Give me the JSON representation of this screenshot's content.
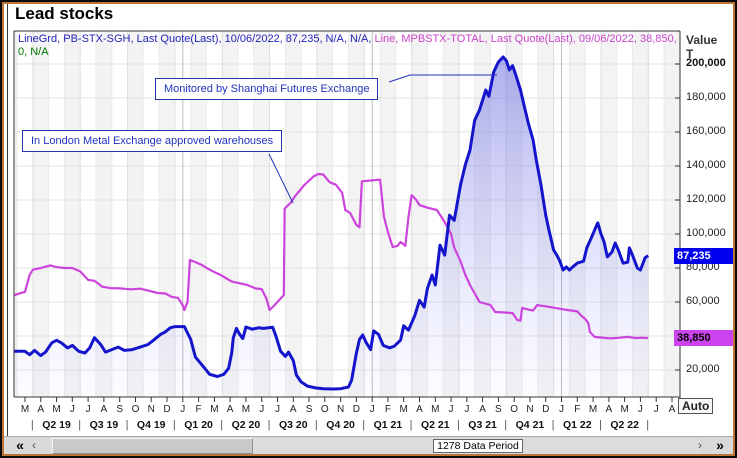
{
  "window": {
    "title": "Lead stocks"
  },
  "legend": {
    "line1_blue": "LineGrd, PB-STX-SGH, Last Quote(Last),  10/06/2022, 87,235, N/A, N/A,",
    "line1_magenta": " Line, MPBSTX-TOTAL, Last Quote(Last), 09/06/2022, 38,850,",
    "line2_green": "0, N/A"
  },
  "annotations": {
    "shfe": "Monitored by Shanghai Futures Exchange",
    "lme": "In London Metal Exchange approved warehouses"
  },
  "y_axis": {
    "title_line1": "Value",
    "title_line2": "T",
    "ticks": [
      {
        "value": 200000,
        "label": "200,000",
        "bold": true
      },
      {
        "value": 180000,
        "label": "180,000"
      },
      {
        "value": 160000,
        "label": "160,000"
      },
      {
        "value": 140000,
        "label": "140,000"
      },
      {
        "value": 120000,
        "label": "120,000"
      },
      {
        "value": 100000,
        "label": "100,000"
      },
      {
        "value": 80000,
        "label": "80,000"
      },
      {
        "value": 60000,
        "label": "60,000"
      },
      {
        "value": 40000,
        "label": ""
      },
      {
        "value": 20000,
        "label": "20,000"
      }
    ],
    "auto_button": "Auto"
  },
  "x_axis": {
    "months": [
      "M",
      "A",
      "M",
      "J",
      "J",
      "A",
      "S",
      "O",
      "N",
      "D",
      "J",
      "F",
      "M",
      "A",
      "M",
      "J",
      "J",
      "A",
      "S",
      "O",
      "N",
      "D",
      "J",
      "F",
      "M",
      "A",
      "M",
      "J",
      "J",
      "A",
      "S",
      "O",
      "N",
      "D",
      "J",
      "F",
      "M",
      "A",
      "M",
      "J",
      "J",
      "A"
    ],
    "quarters": [
      "Q2 19",
      "Q3 19",
      "Q4 19",
      "Q1 20",
      "Q2 20",
      "Q3 20",
      "Q4 20",
      "Q1 21",
      "Q2 21",
      "Q3 21",
      "Q4 21",
      "Q1 22",
      "Q2 22"
    ],
    "separator": "|"
  },
  "badges": {
    "blue": {
      "label": "87,235",
      "value": 87235
    },
    "magenta": {
      "label": "38,850",
      "value": 38850
    }
  },
  "scrollbar": {
    "far_left": "«",
    "left": "‹",
    "label": "1278 Data Period",
    "right": "›",
    "far_right": "»"
  },
  "colors": {
    "blue_line": "#1414cc",
    "magenta_line": "#cc44dd",
    "blue_badge_bg": "#0000ee",
    "magenta_badge_bg": "#cc44ee",
    "annotation": "#2233bb",
    "frame_accent": "#bd7434"
  },
  "chart_data": {
    "type": "line",
    "title": "Lead stocks",
    "ylabel": "Value T (tonnes)",
    "x_unit": "months from Mar 2019 (0 = Mar 2019, fractional = intra-month)",
    "x_tick_months": 42,
    "ylim": [
      4000,
      204000
    ],
    "grid": true,
    "legend_position": "top-left-text",
    "series": [
      {
        "name": "PB-STX-SGH — lead stocks monitored by Shanghai Futures Exchange",
        "style": "line-gradient-fill",
        "color": "#1414cc",
        "last_quote_date": "10/06/2022",
        "last_quote_value": 87235,
        "points": [
          [
            -0.7,
            31000
          ],
          [
            0,
            31000
          ],
          [
            0.3,
            29000
          ],
          [
            0.6,
            31500
          ],
          [
            1.0,
            28500
          ],
          [
            1.3,
            30500
          ],
          [
            1.7,
            36000
          ],
          [
            2.0,
            37500
          ],
          [
            2.3,
            36000
          ],
          [
            2.7,
            33000
          ],
          [
            3.0,
            34500
          ],
          [
            3.4,
            31000
          ],
          [
            3.8,
            30000
          ],
          [
            4.1,
            33000
          ],
          [
            4.4,
            39000
          ],
          [
            4.8,
            35000
          ],
          [
            5.1,
            30500
          ],
          [
            5.5,
            32000
          ],
          [
            5.9,
            33500
          ],
          [
            6.3,
            31500
          ],
          [
            6.8,
            32000
          ],
          [
            7.3,
            33500
          ],
          [
            7.8,
            35000
          ],
          [
            8.2,
            38000
          ],
          [
            8.6,
            41000
          ],
          [
            8.9,
            42500
          ],
          [
            9.2,
            44800
          ],
          [
            9.5,
            45500
          ],
          [
            10.1,
            45500
          ],
          [
            10.5,
            38000
          ],
          [
            10.8,
            27600
          ],
          [
            11.3,
            22000
          ],
          [
            11.7,
            17500
          ],
          [
            12.2,
            16200
          ],
          [
            12.6,
            17500
          ],
          [
            12.9,
            21000
          ],
          [
            13.1,
            30000
          ],
          [
            13.2,
            39000
          ],
          [
            13.4,
            44500
          ],
          [
            13.6,
            41000
          ],
          [
            13.8,
            38500
          ],
          [
            14.0,
            45300
          ],
          [
            14.4,
            44000
          ],
          [
            14.8,
            44800
          ],
          [
            15.1,
            44500
          ],
          [
            15.7,
            45200
          ],
          [
            15.9,
            40000
          ],
          [
            16.2,
            31000
          ],
          [
            16.5,
            28000
          ],
          [
            16.7,
            30500
          ],
          [
            17.0,
            25500
          ],
          [
            17.2,
            17000
          ],
          [
            17.5,
            13000
          ],
          [
            17.9,
            10500
          ],
          [
            18.4,
            9500
          ],
          [
            18.9,
            9000
          ],
          [
            19.5,
            8800
          ],
          [
            20.0,
            9000
          ],
          [
            20.5,
            10000
          ],
          [
            20.7,
            14000
          ],
          [
            21.0,
            30000
          ],
          [
            21.2,
            38000
          ],
          [
            21.4,
            40600
          ],
          [
            21.6,
            36500
          ],
          [
            21.9,
            32000
          ],
          [
            22.1,
            43000
          ],
          [
            22.4,
            41000
          ],
          [
            22.7,
            34500
          ],
          [
            23.1,
            33000
          ],
          [
            23.4,
            34000
          ],
          [
            23.8,
            37600
          ],
          [
            24.0,
            46000
          ],
          [
            24.3,
            43500
          ],
          [
            24.7,
            52000
          ],
          [
            25.0,
            61000
          ],
          [
            25.3,
            57000
          ],
          [
            25.5,
            68000
          ],
          [
            25.8,
            75900
          ],
          [
            26.0,
            70000
          ],
          [
            26.3,
            93500
          ],
          [
            26.6,
            87600
          ],
          [
            26.9,
            111000
          ],
          [
            27.2,
            108000
          ],
          [
            27.6,
            128800
          ],
          [
            27.9,
            140600
          ],
          [
            28.2,
            149400
          ],
          [
            28.5,
            167000
          ],
          [
            28.8,
            172900
          ],
          [
            29.2,
            184700
          ],
          [
            29.4,
            181000
          ],
          [
            29.7,
            195300
          ],
          [
            30.0,
            201200
          ],
          [
            30.3,
            204100
          ],
          [
            30.5,
            202000
          ],
          [
            30.7,
            196500
          ],
          [
            30.9,
            199000
          ],
          [
            31.1,
            193500
          ],
          [
            31.4,
            184700
          ],
          [
            31.7,
            172900
          ],
          [
            31.9,
            165000
          ],
          [
            32.2,
            155300
          ],
          [
            32.4,
            143500
          ],
          [
            32.7,
            128800
          ],
          [
            33.0,
            111200
          ],
          [
            33.2,
            102400
          ],
          [
            33.5,
            90600
          ],
          [
            33.7,
            87600
          ],
          [
            33.9,
            84000
          ],
          [
            34.1,
            78800
          ],
          [
            34.3,
            80600
          ],
          [
            34.5,
            78800
          ],
          [
            34.7,
            80600
          ],
          [
            35.0,
            82900
          ],
          [
            35.4,
            84000
          ],
          [
            35.6,
            91800
          ],
          [
            35.9,
            98000
          ],
          [
            36.2,
            104500
          ],
          [
            36.3,
            106500
          ],
          [
            36.5,
            100000
          ],
          [
            36.7,
            95300
          ],
          [
            36.9,
            86500
          ],
          [
            37.2,
            89400
          ],
          [
            37.4,
            94700
          ],
          [
            37.6,
            90600
          ],
          [
            37.9,
            82900
          ],
          [
            38.2,
            83500
          ],
          [
            38.3,
            91800
          ],
          [
            38.5,
            87600
          ],
          [
            38.8,
            80000
          ],
          [
            39.0,
            78800
          ],
          [
            39.3,
            86100
          ],
          [
            39.5,
            87235
          ]
        ]
      },
      {
        "name": "MPBSTX-TOTAL — lead stocks in London Metal Exchange approved warehouses",
        "style": "line",
        "color": "#cc44dd",
        "last_quote_date": "09/06/2022",
        "last_quote_value": 38850,
        "points": [
          [
            -0.7,
            64000
          ],
          [
            0,
            66000
          ],
          [
            0.3,
            76000
          ],
          [
            0.5,
            79000
          ],
          [
            1.0,
            80000
          ],
          [
            1.6,
            81500
          ],
          [
            2.0,
            80500
          ],
          [
            2.5,
            80000
          ],
          [
            3.0,
            80000
          ],
          [
            3.5,
            78000
          ],
          [
            4.0,
            73000
          ],
          [
            4.4,
            72500
          ],
          [
            4.9,
            69000
          ],
          [
            5.4,
            68200
          ],
          [
            6.0,
            68000
          ],
          [
            6.7,
            67500
          ],
          [
            7.3,
            67800
          ],
          [
            7.9,
            66500
          ],
          [
            8.4,
            65300
          ],
          [
            8.9,
            65000
          ],
          [
            9.3,
            63000
          ],
          [
            9.7,
            62400
          ],
          [
            10.0,
            58000
          ],
          [
            10.1,
            55300
          ],
          [
            10.3,
            60000
          ],
          [
            10.45,
            84700
          ],
          [
            10.8,
            83500
          ],
          [
            11.2,
            81800
          ],
          [
            11.7,
            79000
          ],
          [
            12.4,
            75900
          ],
          [
            13.1,
            72000
          ],
          [
            14.1,
            70000
          ],
          [
            14.6,
            68000
          ],
          [
            15.0,
            67600
          ],
          [
            15.3,
            62000
          ],
          [
            15.5,
            55300
          ],
          [
            15.8,
            58000
          ],
          [
            16.2,
            62000
          ],
          [
            16.4,
            64000
          ],
          [
            16.45,
            115000
          ],
          [
            16.8,
            118000
          ],
          [
            17.1,
            122000
          ],
          [
            17.7,
            128800
          ],
          [
            18.3,
            134000
          ],
          [
            18.6,
            135300
          ],
          [
            18.9,
            135000
          ],
          [
            19.3,
            130500
          ],
          [
            19.7,
            129000
          ],
          [
            20.1,
            124100
          ],
          [
            20.3,
            114100
          ],
          [
            20.6,
            112400
          ],
          [
            21.0,
            105300
          ],
          [
            21.2,
            104000
          ],
          [
            21.35,
            131000
          ],
          [
            22.5,
            132000
          ],
          [
            22.75,
            110000
          ],
          [
            23.0,
            101200
          ],
          [
            23.3,
            92300
          ],
          [
            23.6,
            93000
          ],
          [
            23.8,
            95300
          ],
          [
            24.1,
            93000
          ],
          [
            24.3,
            110000
          ],
          [
            24.5,
            122900
          ],
          [
            24.8,
            120000
          ],
          [
            25.0,
            117000
          ],
          [
            25.5,
            115500
          ],
          [
            26.1,
            114100
          ],
          [
            26.6,
            107000
          ],
          [
            27.0,
            100000
          ],
          [
            27.2,
            92000
          ],
          [
            27.6,
            84000
          ],
          [
            27.9,
            76000
          ],
          [
            28.2,
            70000
          ],
          [
            28.8,
            60000
          ],
          [
            29.5,
            58200
          ],
          [
            29.8,
            54100
          ],
          [
            30.4,
            53800
          ],
          [
            30.9,
            53500
          ],
          [
            31.2,
            49400
          ],
          [
            31.4,
            49000
          ],
          [
            31.5,
            56500
          ],
          [
            31.9,
            55500
          ],
          [
            32.2,
            55000
          ],
          [
            32.45,
            58200
          ],
          [
            33.0,
            57500
          ],
          [
            33.6,
            56500
          ],
          [
            34.2,
            55500
          ],
          [
            35.0,
            54500
          ],
          [
            35.2,
            52400
          ],
          [
            35.5,
            50000
          ],
          [
            35.7,
            47600
          ],
          [
            35.8,
            42400
          ],
          [
            36.1,
            39400
          ],
          [
            36.4,
            39200
          ],
          [
            37.1,
            38600
          ],
          [
            37.7,
            39000
          ],
          [
            38.2,
            39500
          ],
          [
            38.7,
            38800
          ],
          [
            39.1,
            39000
          ],
          [
            39.5,
            38850
          ]
        ]
      }
    ]
  }
}
